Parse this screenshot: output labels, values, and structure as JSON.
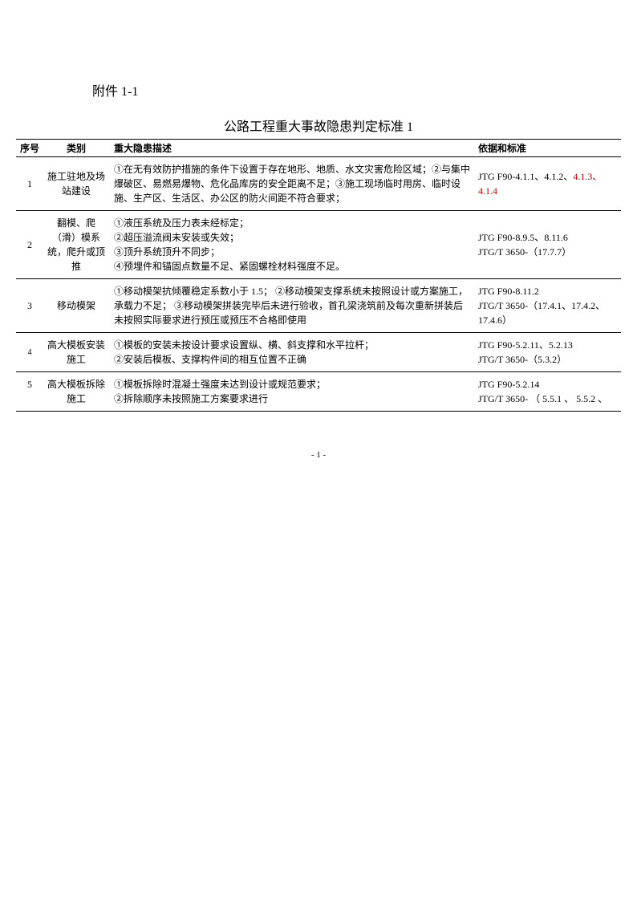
{
  "attachment_label": "附件 1-1",
  "title": "公路工程重大事故隐患判定标准 1",
  "headers": {
    "seq": "序号",
    "category": "类别",
    "description": "重大隐患描述",
    "basis": "依据和标准"
  },
  "rows": [
    {
      "seq": "1",
      "category": "施工驻地及场站建设",
      "description": "①在无有效防护措施的条件下设置于存在地形、地质、水文灾害危险区域；②与集中爆破区、易燃易爆物、危化品库房的安全距离不足；③施工现场临时用房、临时设施、生产区、生活区、办公区的防火间距不符合要求；",
      "basis_prefix": "JTG F90-4.1.1、4.1.2、",
      "basis_red": "4.1.3、4.1.4"
    },
    {
      "seq": "2",
      "category": "翻模、爬（滑）模系统，爬升或顶推",
      "description": "①液压系统及压力表未经标定；\n②超压溢流阀未安装或失效；\n③顶升系统顶升不同步；\n④预埋件和锚固点数量不足、紧固螺栓材料强度不足。",
      "basis": "JTG F90-8.9.5、8.11.6\nJTG/T 3650-（17.7.7）"
    },
    {
      "seq": "3",
      "category": "移动模架",
      "description": "①移动模架抗倾覆稳定系数小于 1.5；  ②移动模架支撑系统未按照设计或方案施工，承载力不足；  ③移动模架拼装完毕后未进行验收，首孔梁浇筑前及每次重新拼装后未按照实际要求进行预压或预压不合格即使用",
      "basis": "JTG F90-8.11.2\nJTG/T 3650-（17.4.1、17.4.2、17.4.6）"
    },
    {
      "seq": "4",
      "category": "高大模板安装施工",
      "description": "①模板的安装未按设计要求设置纵、横、斜支撑和水平拉杆；\n②安装后模板、支撑构件间的相互位置不正确",
      "basis": "JTG F90-5.2.11、5.2.13\nJTG/T 3650-（5.3.2）"
    },
    {
      "seq": "5",
      "category": "高大模板拆除施工",
      "description": "①模板拆除时混凝土强度未达到设计或规范要求；\n②拆除顺序未按照施工方案要求进行",
      "basis": "JTG F90-5.2.14\nJTG/T  3650- （ 5.5.1 、 5.5.2 、"
    }
  ],
  "page_number": "- 1 -"
}
